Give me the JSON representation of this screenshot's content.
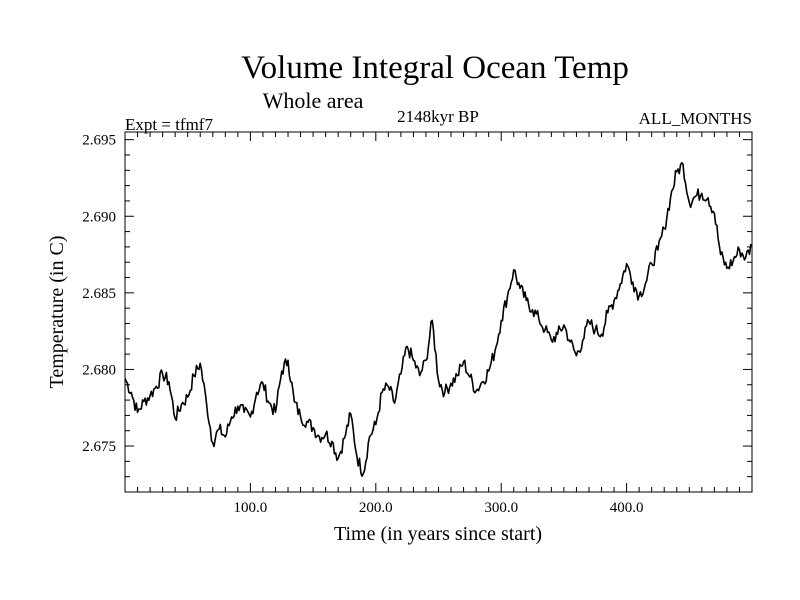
{
  "chart_data": {
    "type": "line",
    "title": "Volume Integral Ocean Temp",
    "subtitle": "Whole area",
    "annotations": {
      "left": "Expt = tfmf7",
      "center": "2148kyr BP",
      "right": "ALL_MONTHS"
    },
    "xlabel": "Time (in years since start)",
    "ylabel": "Temperature (in C)",
    "xlim": [
      0,
      500
    ],
    "ylim": [
      2.672,
      2.6955
    ],
    "xticks": [
      100,
      200,
      300,
      400
    ],
    "xtick_labels": [
      "100.0",
      "200.0",
      "300.0",
      "400.0"
    ],
    "yticks": [
      2.675,
      2.68,
      2.685,
      2.69,
      2.695
    ],
    "ytick_labels": [
      "2.675",
      "2.680",
      "2.685",
      "2.690",
      "2.695"
    ],
    "grid": false,
    "series": [
      {
        "name": "Temperature",
        "x": [
          0,
          5,
          10,
          15,
          20,
          25,
          30,
          35,
          40,
          45,
          50,
          55,
          60,
          65,
          70,
          75,
          80,
          85,
          90,
          95,
          100,
          105,
          110,
          115,
          120,
          125,
          130,
          135,
          140,
          145,
          150,
          155,
          160,
          165,
          170,
          175,
          180,
          185,
          190,
          195,
          200,
          205,
          210,
          215,
          220,
          225,
          230,
          235,
          240,
          245,
          250,
          255,
          260,
          265,
          270,
          275,
          280,
          285,
          290,
          295,
          300,
          305,
          310,
          315,
          320,
          325,
          330,
          335,
          340,
          345,
          350,
          355,
          360,
          365,
          370,
          375,
          380,
          385,
          390,
          395,
          400,
          405,
          410,
          415,
          420,
          425,
          430,
          435,
          440,
          445,
          450,
          455,
          460,
          465,
          470,
          475,
          480,
          485,
          490,
          495,
          500
        ],
        "values": [
          2.6794,
          2.6785,
          2.6772,
          2.6779,
          2.6783,
          2.6789,
          2.6797,
          2.6792,
          2.6768,
          2.6777,
          2.6782,
          2.6796,
          2.6804,
          2.6778,
          2.6752,
          2.6761,
          2.6756,
          2.6769,
          2.6776,
          2.6772,
          2.6769,
          2.6785,
          2.6791,
          2.6778,
          2.6772,
          2.6799,
          2.6806,
          2.6779,
          2.6769,
          2.6766,
          2.6762,
          2.6756,
          2.6758,
          2.6753,
          2.6742,
          2.6755,
          2.6771,
          2.6743,
          2.6732,
          2.6756,
          2.6764,
          2.6785,
          2.6789,
          2.6778,
          2.6797,
          2.6815,
          2.6806,
          2.6796,
          2.6806,
          2.6832,
          2.6793,
          2.6785,
          2.6791,
          2.6796,
          2.6805,
          2.6795,
          2.6786,
          2.6792,
          2.6799,
          2.6812,
          2.6832,
          2.6848,
          2.6865,
          2.6853,
          2.6845,
          2.6839,
          2.6833,
          2.6826,
          2.6819,
          2.6823,
          2.6829,
          2.6818,
          2.6809,
          2.6819,
          2.6831,
          2.6826,
          2.6823,
          2.6837,
          2.6845,
          2.6856,
          2.6869,
          2.6857,
          2.6848,
          2.6856,
          2.6869,
          2.6878,
          2.6892,
          2.6912,
          2.6929,
          2.6934,
          2.6909,
          2.6913,
          2.6915,
          2.6912,
          2.6902,
          2.6875,
          2.6866,
          2.6871,
          2.6878,
          2.6873,
          2.6881
        ]
      }
    ]
  }
}
